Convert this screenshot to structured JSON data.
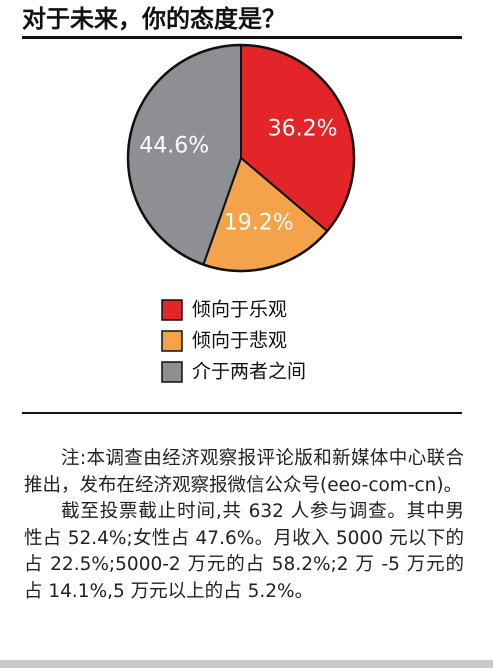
{
  "chart_data": {
    "type": "pie",
    "title": "对于未来，你的态度是？",
    "categories": [
      "倾向于乐观",
      "倾向于悲观",
      "介于两者之间"
    ],
    "values": [
      36.2,
      19.2,
      44.6
    ],
    "value_labels": [
      "36.2%",
      "19.2%",
      "44.6%"
    ],
    "colors": [
      "#e3252a",
      "#f5a34a",
      "#8e8f93"
    ]
  },
  "note": [
    "注:本调查由经济观察报评论版和新媒体中心联合推出，发布在经济观察报微信公众号(eeo-com-cn)。",
    "截至投票截止时间,共 632 人参与调查。其中男性占 52.4%;女性占 47.6%。月收入 5000 元以下的占 22.5%;5000-2 万元的占 58.2%;2 万 -5 万元的占 14.1%,5 万元以上的占 5.2%。"
  ]
}
